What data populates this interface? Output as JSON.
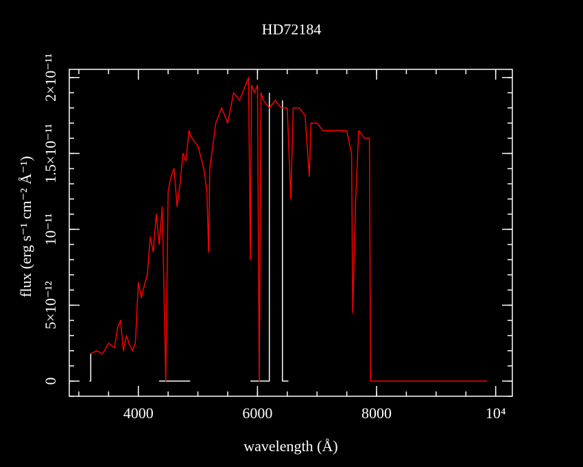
{
  "chart_data": {
    "type": "line",
    "title": "HD72184",
    "x_label": "wavelength (Å)",
    "y_label": "flux (erg s⁻¹ cm⁻² Å⁻¹)",
    "xlim": [
      2840,
      10280
    ],
    "ylim": [
      -1e-12,
      2.054e-11
    ],
    "xticks": [
      4000,
      6000,
      8000,
      {
        "value": 10000,
        "label": "10⁴"
      }
    ],
    "yticks": [
      0,
      {
        "value": 5e-12,
        "label": "5×10⁻¹²"
      },
      {
        "value": 1e-11,
        "label": "10⁻¹¹"
      },
      {
        "value": 1.5e-11,
        "label": "1.5×10⁻¹¹"
      },
      {
        "value": 2e-11,
        "label": "2×10⁻¹¹"
      }
    ],
    "series": [
      {
        "color": "#ffffff",
        "x": [
          3180,
          3200,
          3200,
          null,
          4350,
          4870,
          null,
          5880,
          6200,
          6200,
          null,
          6420,
          6420,
          6520
        ],
        "values": [
          0,
          0,
          1.8e-12,
          null,
          0,
          0,
          null,
          0,
          0,
          1.9e-11,
          null,
          1.85e-11,
          0,
          0
        ]
      },
      {
        "color": "#ff0000",
        "x": [
          3200,
          3300,
          3400,
          3500,
          3600,
          3650,
          3700,
          3750,
          3800,
          3850,
          3900,
          3950,
          4000,
          4050,
          4100,
          4150,
          4200,
          4250,
          4300,
          4350,
          4400,
          4430,
          4460,
          4500,
          4550,
          4600,
          4650,
          4700,
          4750,
          4800,
          4850,
          4900,
          5000,
          5100,
          5150,
          5180,
          5200,
          5300,
          5400,
          5500,
          5600,
          5700,
          5800,
          5850,
          5880,
          5900,
          5950,
          6000,
          6030,
          6060,
          6100,
          6200,
          6300,
          6400,
          6500,
          6560,
          6600,
          6700,
          6800,
          6870,
          6900,
          7000,
          7100,
          7200,
          7300,
          7400,
          7500,
          7580,
          7600,
          7650,
          7700,
          7800,
          7880,
          7900,
          9860
        ],
        "values": [
          1.8e-12,
          2e-12,
          1.8e-12,
          2.5e-12,
          2.2e-12,
          3.5e-12,
          4e-12,
          2e-12,
          3e-12,
          2.4e-12,
          2e-12,
          2.5e-12,
          6.5e-12,
          5.5e-12,
          6.3e-12,
          7e-12,
          9.5e-12,
          8.5e-12,
          1.1e-11,
          9e-12,
          1.15e-11,
          6e-12,
          0,
          1.25e-11,
          1.35e-11,
          1.4e-11,
          1.15e-11,
          1.3e-11,
          1.5e-11,
          1.45e-11,
          1.65e-11,
          1.6e-11,
          1.55e-11,
          1.4e-11,
          1.25e-11,
          8.5e-12,
          1.4e-11,
          1.7e-11,
          1.8e-11,
          1.7e-11,
          1.9e-11,
          1.85e-11,
          1.95e-11,
          2e-11,
          8e-12,
          1.95e-11,
          1.9e-11,
          1.95e-11,
          0,
          1.9e-11,
          1.85e-11,
          1.8e-11,
          1.85e-11,
          1.8e-11,
          1.8e-11,
          1.2e-11,
          1.8e-11,
          1.8e-11,
          1.75e-11,
          1.35e-11,
          1.7e-11,
          1.7e-11,
          1.65e-11,
          1.65e-11,
          1.65e-11,
          1.65e-11,
          1.65e-11,
          1.5e-11,
          4.5e-12,
          1.2e-11,
          1.65e-11,
          1.6e-11,
          1.6e-11,
          0,
          0
        ]
      }
    ]
  }
}
